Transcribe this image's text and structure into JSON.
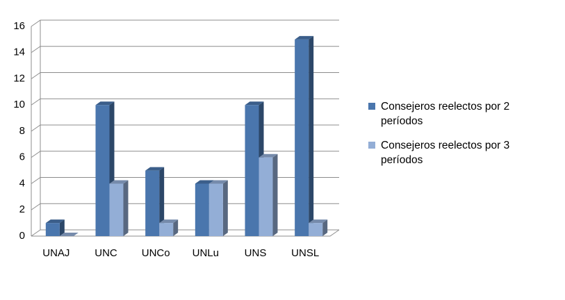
{
  "chart_data": {
    "type": "bar3d",
    "categories": [
      "UNAJ",
      "UNC",
      "UNCo",
      "UNLu",
      "UNS",
      "UNSL"
    ],
    "series": [
      {
        "name": "Consejeros reelectos por 2 períodos",
        "color": "#4a76ad",
        "values": [
          1,
          10,
          5,
          4,
          10,
          15
        ]
      },
      {
        "name": "Consejeros reelectos por 3 períodos",
        "color": "#93aed6",
        "values": [
          0,
          4,
          1,
          4,
          6,
          1
        ]
      }
    ],
    "ylim": [
      0,
      16
    ],
    "yticks": [
      0,
      2,
      4,
      6,
      8,
      10,
      12,
      14,
      16
    ],
    "grid": true,
    "legend": "right"
  }
}
